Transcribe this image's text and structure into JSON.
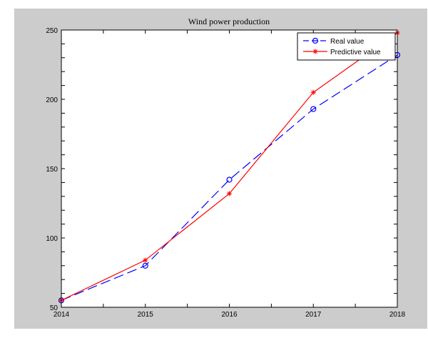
{
  "chart_data": {
    "type": "line",
    "title": "Wind power production",
    "xlabel": "",
    "ylabel": "",
    "x": [
      2014,
      2015,
      2016,
      2017,
      2018
    ],
    "xlim": [
      2014,
      2018
    ],
    "ylim": [
      50,
      250
    ],
    "xticks": [
      2014,
      2015,
      2016,
      2017,
      2018
    ],
    "yticks": [
      50,
      100,
      150,
      200,
      250
    ],
    "grid": false,
    "legend_position": "top-right",
    "series": [
      {
        "name": "Real value",
        "values": [
          55,
          80,
          142,
          193,
          232
        ],
        "color": "#0000ff",
        "marker": "circle",
        "line_style": "dashed"
      },
      {
        "name": "Predictive value",
        "values": [
          55,
          84,
          132,
          205,
          248
        ],
        "color": "#ff0000",
        "marker": "star",
        "line_style": "solid"
      }
    ]
  }
}
